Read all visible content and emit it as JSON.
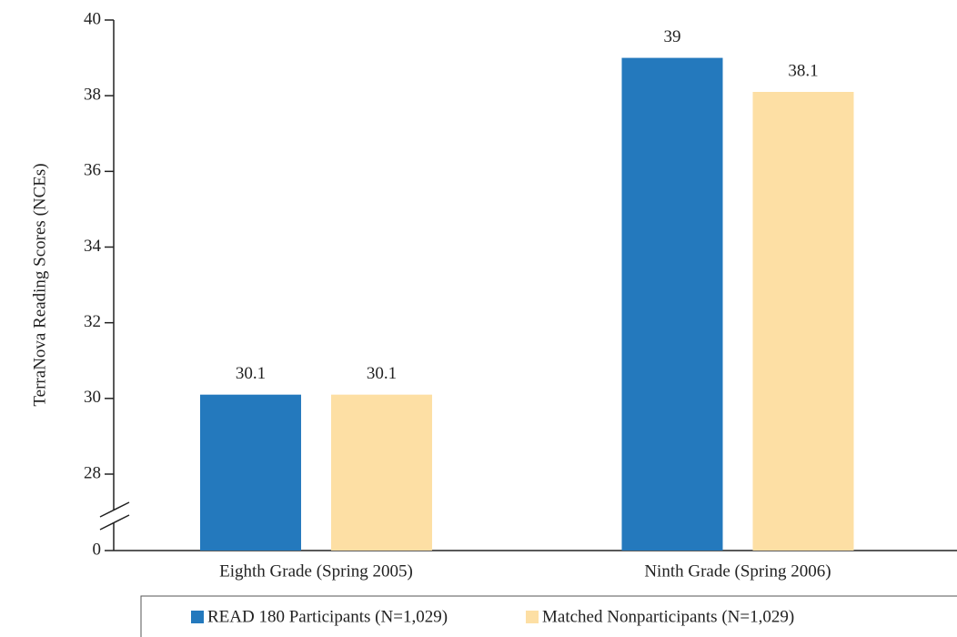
{
  "chart_data": {
    "type": "bar",
    "ylabel": "TerraNova Reading Scores (NCEs)",
    "categories": [
      "Eighth Grade (Spring 2005)",
      "Ninth Grade (Spring 2006)"
    ],
    "series": [
      {
        "name": "READ 180 Participants (N=1,029)",
        "color": "#2479bd",
        "values": [
          30.1,
          39
        ]
      },
      {
        "name": "Matched Nonparticipants (N=1,029)",
        "color": "#fddfa4",
        "values": [
          30.1,
          38.1
        ]
      }
    ],
    "ylim": [
      0,
      40
    ],
    "yticks": [
      0,
      28,
      30,
      32,
      34,
      36,
      38,
      40
    ],
    "axis_break": true
  }
}
